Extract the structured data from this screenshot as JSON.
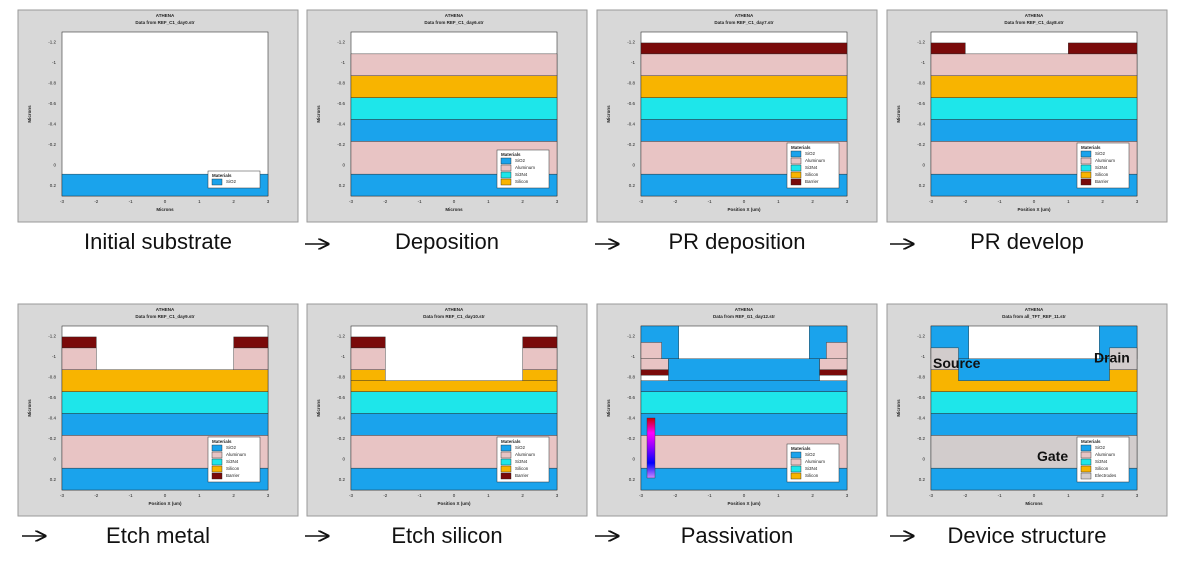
{
  "axes": {
    "yticks": [
      "-1.2",
      "-1",
      "-0.8",
      "-0.6",
      "-0.4",
      "-0.2",
      "0",
      "0.2"
    ],
    "xticks": [
      "-3",
      "-2",
      "-1",
      "0",
      "1",
      "2",
      "3"
    ]
  },
  "panels": [
    {
      "header": "ATHENA",
      "file": "Data from REF_C1_day0.str",
      "x_label": "Microns",
      "y_label": "Microns",
      "legend_title": "Materials",
      "legend": [
        "SiO2"
      ],
      "caption": "Initial substrate"
    },
    {
      "header": "ATHENA",
      "file": "Data from REF_C1_day6.str",
      "x_label": "Microns",
      "y_label": "Microns",
      "legend_title": "Materials",
      "legend": [
        "SiO2",
        "Aluminum",
        "Si3N4",
        "Silicon"
      ],
      "caption": "Deposition"
    },
    {
      "header": "ATHENA",
      "file": "Data from REF_C1_day7.str",
      "x_label": "Position X (um)",
      "y_label": "Microns",
      "legend_title": "Materials",
      "legend": [
        "SiO2",
        "Aluminum",
        "Si3N4",
        "Silicon",
        "Barrier"
      ],
      "caption": "PR deposition"
    },
    {
      "header": "ATHENA",
      "file": "Data from REF_C1_day8.str",
      "x_label": "Position X (um)",
      "y_label": "Microns",
      "legend_title": "Materials",
      "legend": [
        "SiO2",
        "Aluminum",
        "Si3N4",
        "Silicon",
        "Barrier"
      ],
      "caption": "PR develop"
    },
    {
      "header": "ATHENA",
      "file": "Data from REF_C1_day9.str",
      "x_label": "Position X (um)",
      "y_label": "Microns",
      "legend_title": "Materials",
      "legend": [
        "SiO2",
        "Aluminum",
        "Si3N4",
        "Silicon",
        "Barrier"
      ],
      "caption": "Etch metal"
    },
    {
      "header": "ATHENA",
      "file": "Data from REF_C1_day10.str",
      "x_label": "Position X (um)",
      "y_label": "Microns",
      "legend_title": "Materials",
      "legend": [
        "SiO2",
        "Aluminum",
        "Si3N4",
        "Silicon",
        "Barrier"
      ],
      "caption": "Etch silicon"
    },
    {
      "header": "ATHENA",
      "file": "Data from REF_G1_day12.str",
      "x_label": "Position X (um)",
      "y_label": "Microns",
      "legend_title": "Materials",
      "legend": [
        "SiO2",
        "Aluminum",
        "Si3N4",
        "Silicon"
      ],
      "caption": "Passivation"
    },
    {
      "header": "ATHENA",
      "file": "Data from all_TFT_REF_11.str",
      "x_label": "Microns",
      "y_label": "Microns",
      "legend_title": "Materials",
      "legend": [
        "SiO2",
        "Aluminum",
        "Si3N4",
        "Silicon",
        "Electrodes"
      ],
      "caption": "Device structure",
      "annotations": [
        "Source",
        "Drain",
        "Gate"
      ]
    }
  ]
}
